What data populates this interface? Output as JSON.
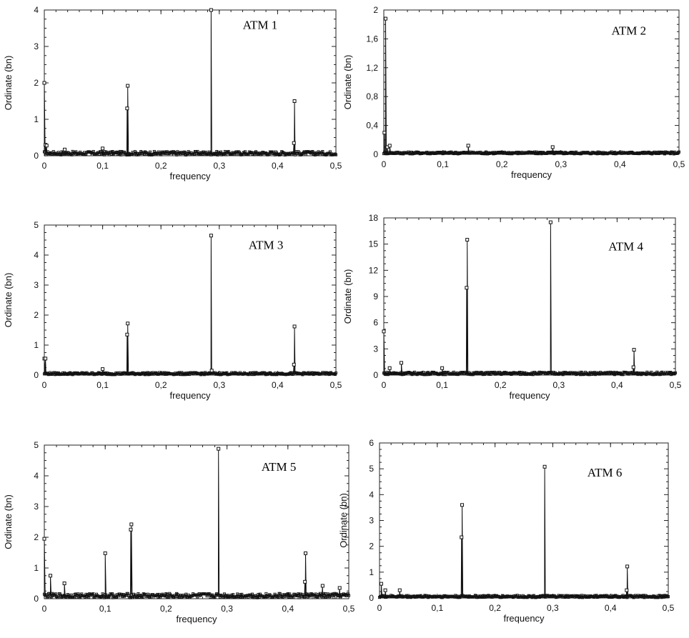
{
  "chart_data": [
    {
      "type": "line",
      "title": "ATM 1",
      "xlabel": "frequency",
      "ylabel": "Ordinate (bn)",
      "xlim": [
        0,
        0.5
      ],
      "ylim": [
        0,
        4
      ],
      "x_ticks": [
        "0",
        "0,1",
        "0,2",
        "0,3",
        "0,4",
        "0,5"
      ],
      "y_ticks": [
        "0",
        "1",
        "2",
        "3",
        "4"
      ],
      "baseline": 0.07,
      "peaks": [
        {
          "x": 0.0,
          "y": 2.0
        },
        {
          "x": 0.002,
          "y": 0.3
        },
        {
          "x": 0.004,
          "y": 0.28
        },
        {
          "x": 0.035,
          "y": 0.17
        },
        {
          "x": 0.1,
          "y": 0.2
        },
        {
          "x": 0.142,
          "y": 1.3
        },
        {
          "x": 0.143,
          "y": 1.92
        },
        {
          "x": 0.286,
          "y": 4.0
        },
        {
          "x": 0.428,
          "y": 0.35
        },
        {
          "x": 0.429,
          "y": 1.5
        }
      ]
    },
    {
      "type": "line",
      "title": "ATM 2",
      "xlabel": "frequency",
      "ylabel": "Ordinate (bn)",
      "xlim": [
        0,
        0.5
      ],
      "ylim": [
        0,
        2
      ],
      "x_ticks": [
        "0",
        "0,1",
        "0,2",
        "0,3",
        "0,4",
        "0,5"
      ],
      "y_ticks": [
        "0",
        "0,4",
        "0,8",
        "1,2",
        "1,6",
        "2"
      ],
      "baseline": 0.02,
      "peaks": [
        {
          "x": 0.001,
          "y": 0.3
        },
        {
          "x": 0.003,
          "y": 1.88
        },
        {
          "x": 0.006,
          "y": 0.1
        },
        {
          "x": 0.01,
          "y": 0.12
        },
        {
          "x": 0.143,
          "y": 0.12
        },
        {
          "x": 0.286,
          "y": 0.1
        }
      ]
    },
    {
      "type": "line",
      "title": "ATM 3",
      "xlabel": "frequency",
      "ylabel": "Ordinate (bn)",
      "xlim": [
        0,
        0.5
      ],
      "ylim": [
        0,
        5
      ],
      "x_ticks": [
        "0",
        "0,1",
        "0,2",
        "0,3",
        "0,4",
        "0,5"
      ],
      "y_ticks": [
        "0",
        "1",
        "2",
        "3",
        "4",
        "5"
      ],
      "baseline": 0.05,
      "peaks": [
        {
          "x": 0.0,
          "y": 0.55
        },
        {
          "x": 0.002,
          "y": 0.55
        },
        {
          "x": 0.1,
          "y": 0.2
        },
        {
          "x": 0.142,
          "y": 1.35
        },
        {
          "x": 0.143,
          "y": 1.72
        },
        {
          "x": 0.286,
          "y": 4.65
        },
        {
          "x": 0.287,
          "y": 0.15
        },
        {
          "x": 0.428,
          "y": 0.35
        },
        {
          "x": 0.429,
          "y": 1.62
        }
      ]
    },
    {
      "type": "line",
      "title": "ATM 4",
      "xlabel": "frequency",
      "ylabel": "Ordinate (bn)",
      "xlim": [
        0,
        0.5
      ],
      "ylim": [
        0,
        18
      ],
      "x_ticks": [
        "0",
        "0,1",
        "0,2",
        "0,3",
        "0,4",
        "0,5"
      ],
      "y_ticks": [
        "0",
        "3",
        "6",
        "9",
        "12",
        "15",
        "18"
      ],
      "baseline": 0.2,
      "peaks": [
        {
          "x": 0.0,
          "y": 5.0
        },
        {
          "x": 0.01,
          "y": 0.8
        },
        {
          "x": 0.03,
          "y": 1.4
        },
        {
          "x": 0.1,
          "y": 0.8
        },
        {
          "x": 0.142,
          "y": 10.0
        },
        {
          "x": 0.143,
          "y": 15.5
        },
        {
          "x": 0.286,
          "y": 17.5
        },
        {
          "x": 0.428,
          "y": 0.9
        },
        {
          "x": 0.429,
          "y": 2.9
        }
      ]
    },
    {
      "type": "line",
      "title": "ATM 5",
      "xlabel": "frequency",
      "ylabel": "Ordinate (bn)",
      "xlim": [
        0,
        0.5
      ],
      "ylim": [
        0,
        5
      ],
      "x_ticks": [
        "0",
        "0,1",
        "0,2",
        "0,3",
        "0,4",
        "0,5"
      ],
      "y_ticks": [
        "0",
        "1",
        "2",
        "3",
        "4",
        "5"
      ],
      "baseline": 0.1,
      "peaks": [
        {
          "x": 0.0,
          "y": 1.95
        },
        {
          "x": 0.01,
          "y": 0.75
        },
        {
          "x": 0.033,
          "y": 0.5
        },
        {
          "x": 0.1,
          "y": 1.48
        },
        {
          "x": 0.142,
          "y": 2.25
        },
        {
          "x": 0.143,
          "y": 2.42
        },
        {
          "x": 0.286,
          "y": 4.88
        },
        {
          "x": 0.428,
          "y": 0.55
        },
        {
          "x": 0.429,
          "y": 1.48
        },
        {
          "x": 0.457,
          "y": 0.42
        },
        {
          "x": 0.485,
          "y": 0.35
        }
      ]
    },
    {
      "type": "line",
      "title": "ATM 6",
      "xlabel": "frequency",
      "ylabel": "Ordinate (bn)",
      "xlim": [
        0,
        0.5
      ],
      "ylim": [
        0,
        6
      ],
      "x_ticks": [
        "0",
        "0,1",
        "0,2",
        "0,3",
        "0,4",
        "0,5"
      ],
      "y_ticks": [
        "0",
        "1",
        "2",
        "3",
        "4",
        "5",
        "6"
      ],
      "baseline": 0.06,
      "peaks": [
        {
          "x": 0.003,
          "y": 0.55
        },
        {
          "x": 0.01,
          "y": 0.3
        },
        {
          "x": 0.035,
          "y": 0.3
        },
        {
          "x": 0.142,
          "y": 2.35
        },
        {
          "x": 0.143,
          "y": 3.6
        },
        {
          "x": 0.286,
          "y": 5.08
        },
        {
          "x": 0.428,
          "y": 0.3
        },
        {
          "x": 0.429,
          "y": 1.22
        }
      ]
    }
  ]
}
